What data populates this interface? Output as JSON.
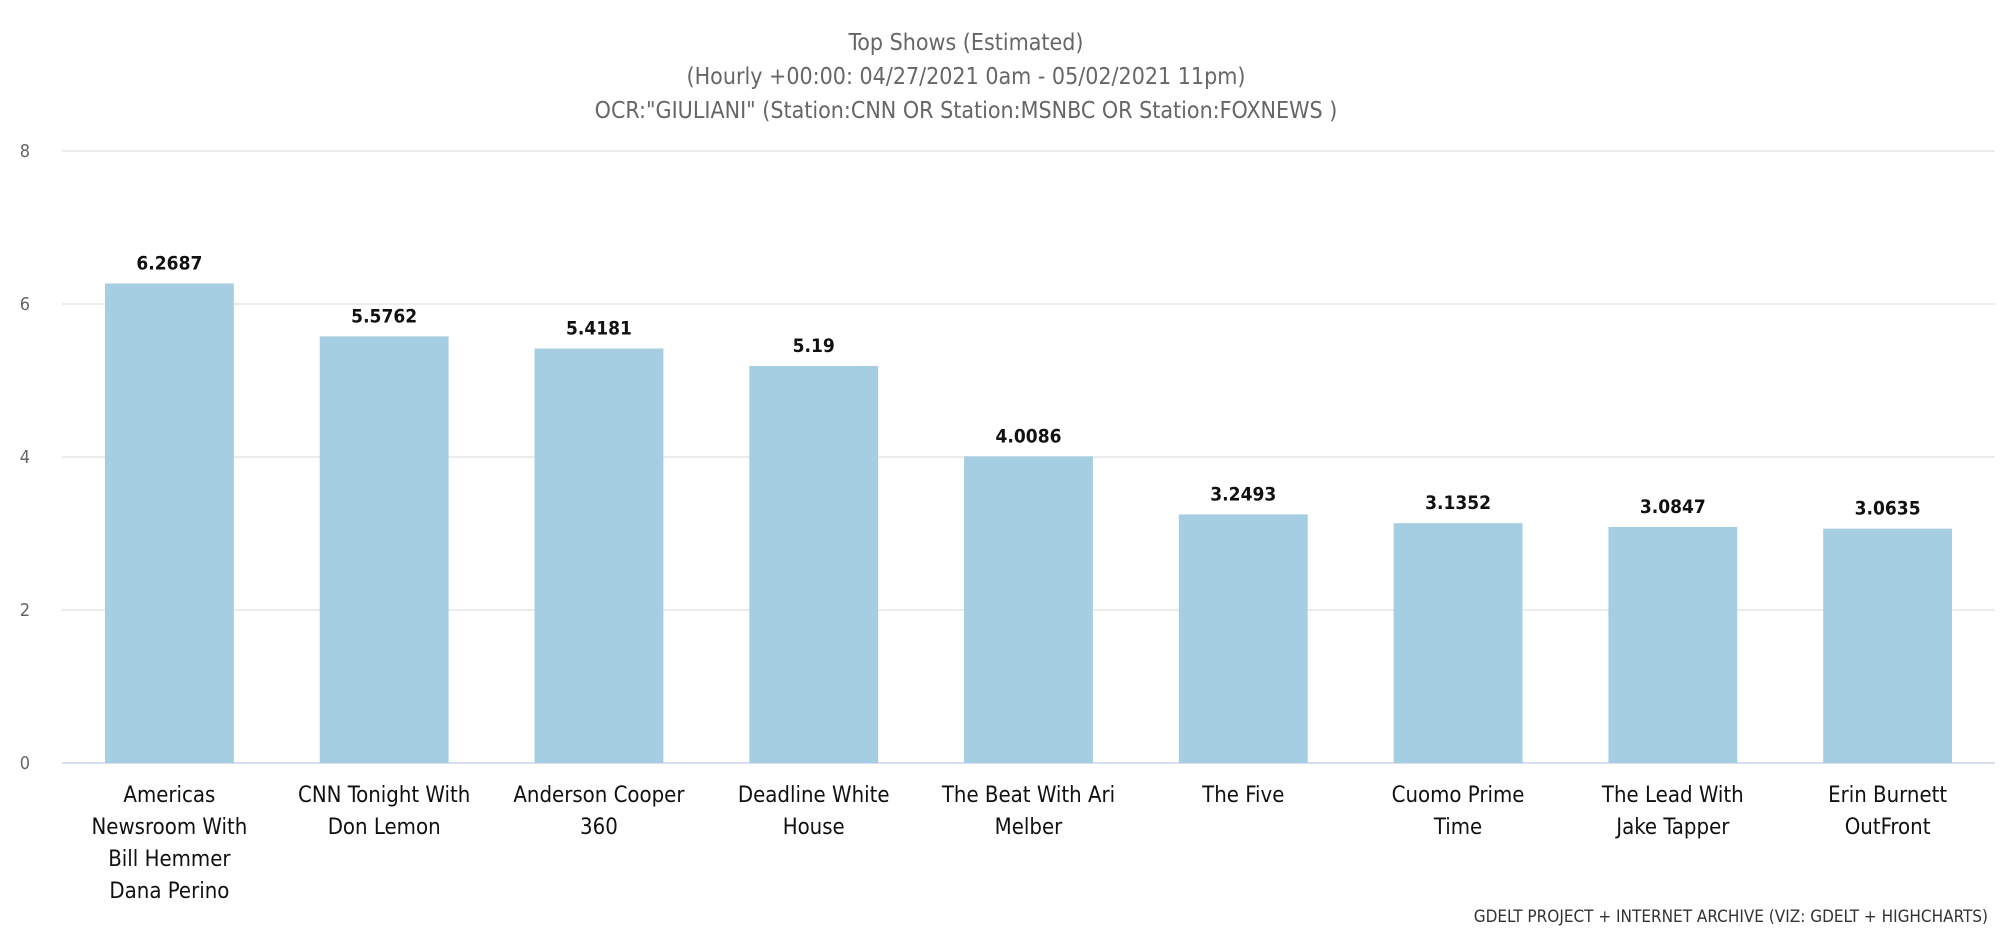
{
  "chart_data": {
    "type": "bar",
    "title": [
      "Top Shows (Estimated)",
      "(Hourly +00:00: 04/27/2021 0am - 05/02/2021 11pm)",
      "OCR:\"GIULIANI\" (Station:CNN OR Station:MSNBC OR Station:FOXNEWS )"
    ],
    "categories": [
      [
        "Americas",
        "Newsroom With",
        "Bill Hemmer",
        "Dana Perino"
      ],
      [
        "CNN Tonight With",
        "Don Lemon"
      ],
      [
        "Anderson Cooper",
        "360"
      ],
      [
        "Deadline White",
        "House"
      ],
      [
        "The Beat With Ari",
        "Melber"
      ],
      [
        "The Five"
      ],
      [
        "Cuomo Prime",
        "Time"
      ],
      [
        "The Lead With",
        "Jake Tapper"
      ],
      [
        "Erin Burnett",
        "OutFront"
      ]
    ],
    "values": [
      6.2687,
      5.5762,
      5.4181,
      5.19,
      4.0086,
      3.2493,
      3.1352,
      3.0847,
      3.0635
    ],
    "data_labels": [
      "6.2687",
      "5.5762",
      "5.4181",
      "5.19",
      "4.0086",
      "3.2493",
      "3.1352",
      "3.0847",
      "3.0635"
    ],
    "ylim": [
      0,
      8
    ],
    "yticks": [
      0,
      2,
      4,
      6,
      8
    ],
    "xlabel": "",
    "ylabel": "",
    "grid": true,
    "legend": "none",
    "bar_color": "#a6cee3",
    "credit": "GDELT PROJECT + INTERNET ARCHIVE (VIZ: GDELT + HIGHCHARTS)"
  }
}
